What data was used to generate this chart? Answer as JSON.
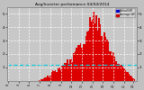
{
  "title": "Avg/Inverter performance 04/04/2014",
  "legend_actual": "Actual kW",
  "legend_average": "Average kW",
  "bg_color": "#c0c0c0",
  "plot_bg_color": "#c8c8c8",
  "bar_color": "#dd0000",
  "avg_line_color": "#00ccdd",
  "grid_color": "#ffffff",
  "text_color": "#000000",
  "title_color": "#000000",
  "legend_actual_color": "#0000cc",
  "legend_average_color": "#cc0000",
  "ylim": [
    0,
    5.5
  ],
  "yticks": [
    1,
    2,
    3,
    4,
    5
  ],
  "avg_value": 1.15,
  "values": [
    0,
    0,
    0,
    0,
    0,
    0,
    0,
    0,
    0,
    0,
    0,
    0,
    0,
    0,
    0,
    0,
    0,
    0,
    0,
    0,
    0,
    0,
    0,
    0,
    0.05,
    0.08,
    0.12,
    0.18,
    0.25,
    0.3,
    0.35,
    0.28,
    0.4,
    0.55,
    0.7,
    0.65,
    0.8,
    0.75,
    0.9,
    1.0,
    0.85,
    1.1,
    1.3,
    1.2,
    1.4,
    1.5,
    1.35,
    1.6,
    1.7,
    1.55,
    1.8,
    2.0,
    2.2,
    2.4,
    2.6,
    2.5,
    2.8,
    3.0,
    3.2,
    3.5,
    3.8,
    4.0,
    4.3,
    4.6,
    4.9,
    5.1,
    4.8,
    4.5,
    4.3,
    4.1,
    3.9,
    3.7,
    3.5,
    3.3,
    3.1,
    2.9,
    2.7,
    2.5,
    2.3,
    2.1,
    1.9,
    1.7,
    1.5,
    1.4,
    1.3,
    1.2,
    1.1,
    1.0,
    0.9,
    0.8,
    0.7,
    0.6,
    0.5,
    0.4,
    0.3,
    0.2,
    0.1,
    0
  ],
  "xtick_positions": [
    0,
    8,
    16,
    24,
    32,
    40,
    48,
    56,
    64,
    72,
    80,
    88,
    95
  ],
  "xtick_labels": [
    "0:",
    "3:",
    "6:",
    "7:",
    "8:",
    "9:",
    "12:",
    "13:",
    "15:",
    "18:",
    "20:",
    "21:",
    "24:"
  ]
}
